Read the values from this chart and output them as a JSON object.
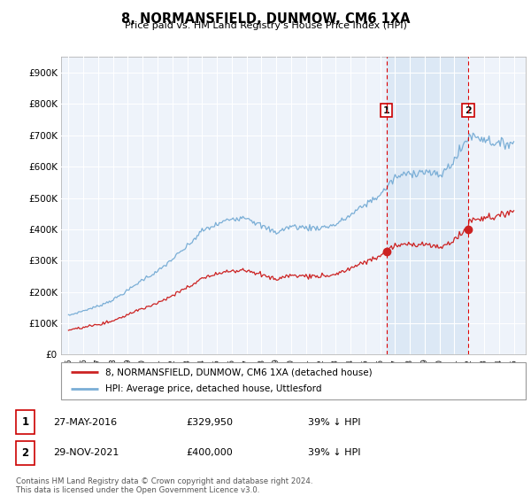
{
  "title": "8, NORMANSFIELD, DUNMOW, CM6 1XA",
  "subtitle": "Price paid vs. HM Land Registry's House Price Index (HPI)",
  "ylim": [
    0,
    950000
  ],
  "yticks": [
    0,
    100000,
    200000,
    300000,
    400000,
    500000,
    600000,
    700000,
    800000,
    900000
  ],
  "ytick_labels": [
    "£0",
    "£100K",
    "£200K",
    "£300K",
    "£400K",
    "£500K",
    "£600K",
    "£700K",
    "£800K",
    "£900K"
  ],
  "hpi_color": "#7aaed6",
  "price_color": "#cc2222",
  "vline_color": "#dd0000",
  "shade_color": "#dce8f5",
  "background_color": "#ffffff",
  "plot_bg_color": "#eef3fa",
  "grid_color": "#ffffff",
  "transaction1_x": 2016.42,
  "transaction1_y": 329950,
  "transaction2_x": 2021.92,
  "transaction2_y": 400000,
  "legend_label_red": "8, NORMANSFIELD, DUNMOW, CM6 1XA (detached house)",
  "legend_label_blue": "HPI: Average price, detached house, Uttlesford",
  "trans1_date": "27-MAY-2016",
  "trans1_price": "£329,950",
  "trans1_pct": "39% ↓ HPI",
  "trans2_date": "29-NOV-2021",
  "trans2_price": "£400,000",
  "trans2_pct": "39% ↓ HPI",
  "footer": "Contains HM Land Registry data © Crown copyright and database right 2024.\nThis data is licensed under the Open Government Licence v3.0.",
  "xlim_left": 1994.5,
  "xlim_right": 2025.8
}
